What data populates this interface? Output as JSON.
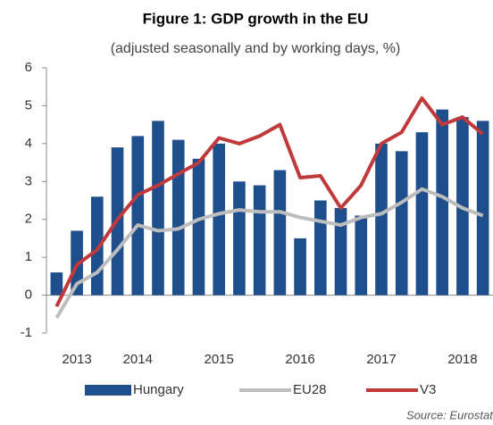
{
  "chart_data": {
    "type": "bar_line",
    "title": "Figure 1: GDP growth in the EU",
    "subtitle": "(adjusted seasonally and by working days, %)",
    "source": "Source: Eurostat",
    "categories": [
      null,
      "2013",
      null,
      null,
      "2014",
      null,
      null,
      null,
      "2015",
      null,
      null,
      null,
      "2016",
      null,
      null,
      null,
      "2017",
      null,
      null,
      null,
      "2018",
      null
    ],
    "series": [
      {
        "name": "Hungary",
        "type": "bar",
        "color": "#1f4e8c",
        "values": [
          0.6,
          1.7,
          2.6,
          3.9,
          4.2,
          4.6,
          4.1,
          3.6,
          4.0,
          3.0,
          2.9,
          3.3,
          1.5,
          2.5,
          2.3,
          2.1,
          4.0,
          3.8,
          4.3,
          4.9,
          4.7,
          4.6
        ]
      },
      {
        "name": "EU28",
        "type": "line",
        "color": "#bdbdbd",
        "values": [
          -0.6,
          0.3,
          0.6,
          1.2,
          1.85,
          1.7,
          1.75,
          2.0,
          2.15,
          2.25,
          2.2,
          2.2,
          2.05,
          1.95,
          1.85,
          2.05,
          2.15,
          2.45,
          2.8,
          2.6,
          2.3,
          2.1
        ]
      },
      {
        "name": "V3",
        "type": "line",
        "color": "#c0393b",
        "values": [
          -0.3,
          0.8,
          1.2,
          2.0,
          2.65,
          2.9,
          3.2,
          3.5,
          4.15,
          4.0,
          4.2,
          4.5,
          3.1,
          3.15,
          2.3,
          2.9,
          4.0,
          4.3,
          5.2,
          4.5,
          4.7,
          4.25
        ]
      }
    ],
    "ylim": [
      -1,
      6
    ],
    "yticks": [
      -1,
      0,
      1,
      2,
      3,
      4,
      5,
      6
    ]
  }
}
